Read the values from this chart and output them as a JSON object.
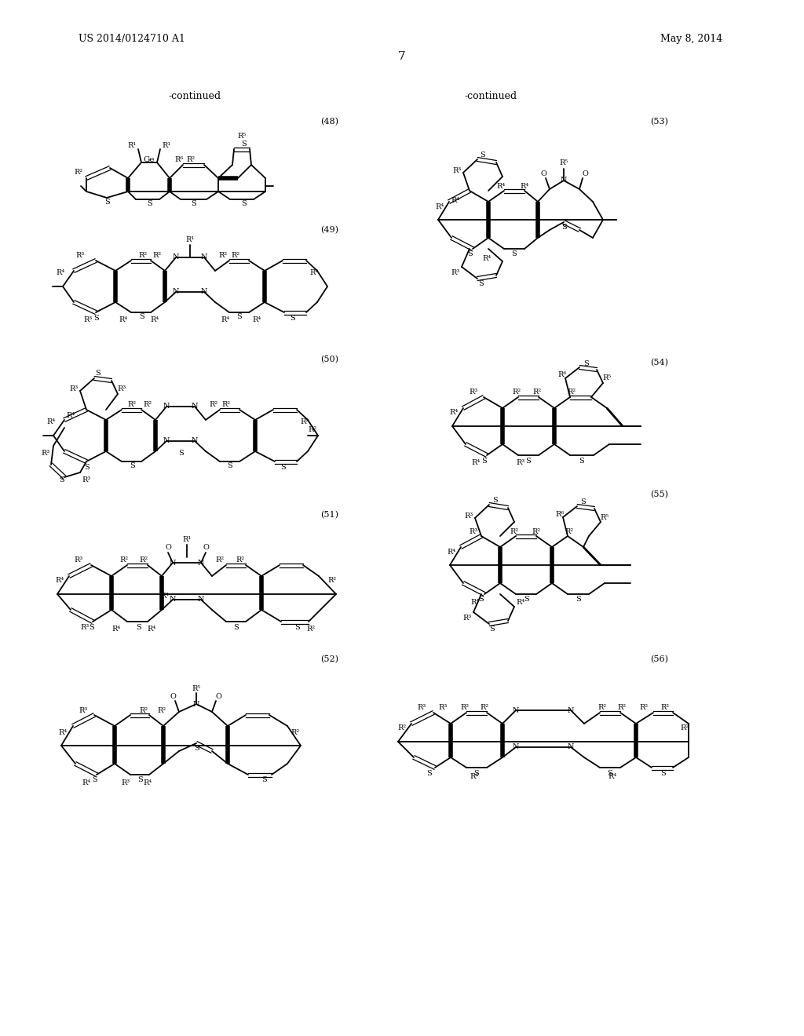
{
  "page_title_left": "US 2014/0124710 A1",
  "page_title_right": "May 8, 2014",
  "page_number": "7",
  "bg": "#ffffff",
  "fg": "#000000",
  "continued_left": "-continued",
  "continued_right": "-continued",
  "compounds_left": [
    "(48)",
    "(49)",
    "(50)",
    "(51)",
    "(52)"
  ],
  "compounds_right": [
    "(53)",
    "(54)",
    "(55)",
    "(56)"
  ]
}
